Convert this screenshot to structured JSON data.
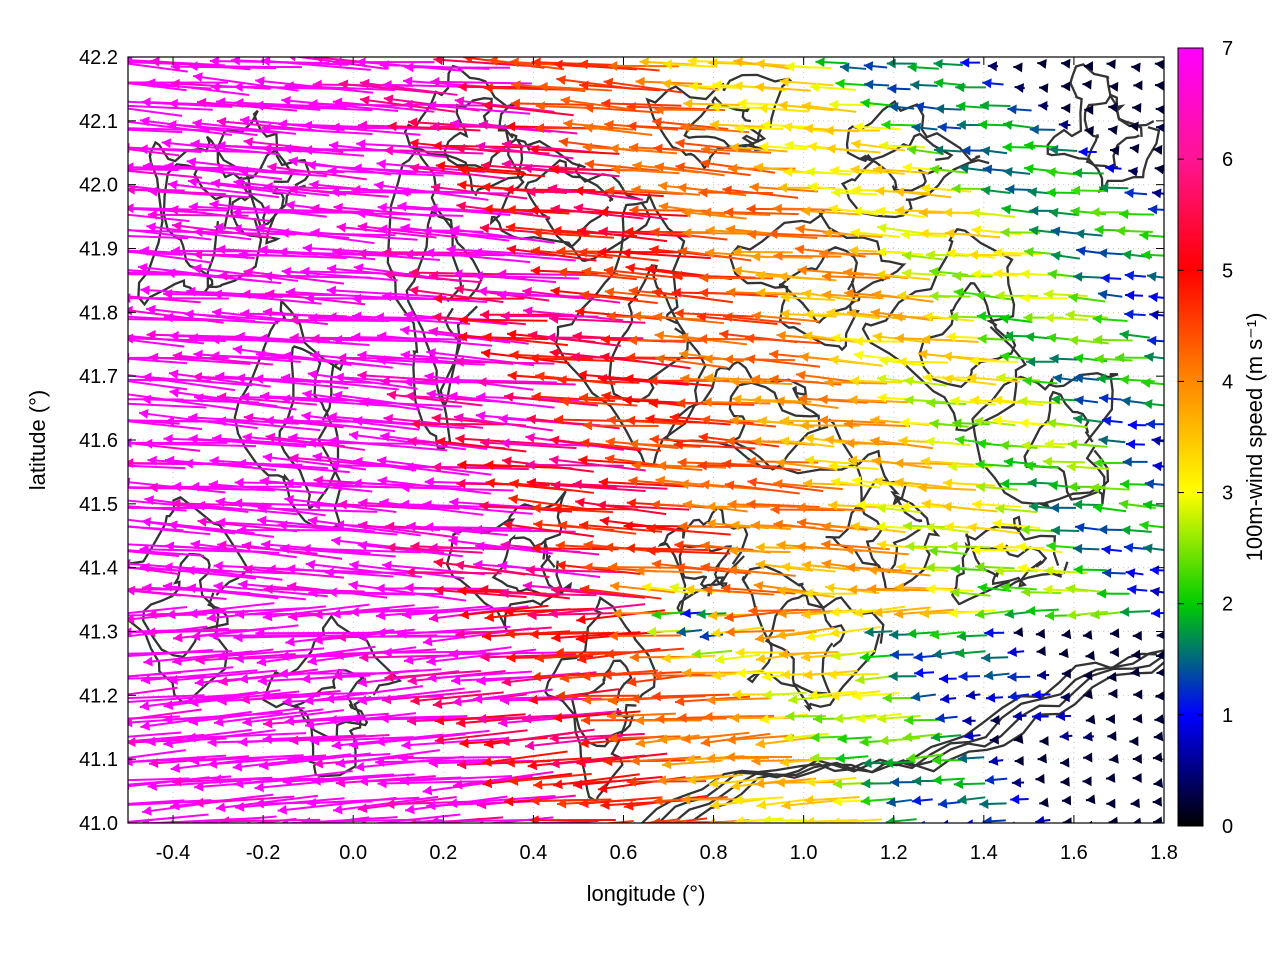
{
  "chart_data": {
    "type": "quiver",
    "xlabel": "longitude (°)",
    "ylabel": "latitude (°)",
    "xlim": [
      -0.5,
      1.8
    ],
    "ylim": [
      41.0,
      42.2
    ],
    "xticks": [
      "-0.4",
      "-0.2",
      "0.0",
      "0.2",
      "0.4",
      "0.6",
      "0.8",
      "1.0",
      "1.2",
      "1.4",
      "1.6",
      "1.8"
    ],
    "yticks": [
      "41.0",
      "41.1",
      "41.2",
      "41.3",
      "41.4",
      "41.5",
      "41.6",
      "41.7",
      "41.8",
      "41.9",
      "42.0",
      "42.1",
      "42.2"
    ],
    "colorbar": {
      "label": "100m-wind speed (m s⁻¹)",
      "range": [
        0,
        7
      ],
      "ticks": [
        "0",
        "1",
        "2",
        "3",
        "4",
        "5",
        "6",
        "7"
      ],
      "colors": [
        "#000000",
        "#0000ff",
        "#00cc00",
        "#ffff00",
        "#ff8800",
        "#ff0000",
        "#ff00ff"
      ]
    },
    "grid": "dotted",
    "legend": "none",
    "wind_direction": "mostly easterly (arrows pointing west)",
    "speed_regions": [
      {
        "region": "west and center, lat 41.3–42.0",
        "speed_ms": 7
      },
      {
        "region": "central band, lon 0.4–1.0",
        "speed_ms": 5
      },
      {
        "region": "east, lon 1.0–1.8, lat 41.0–41.3",
        "speed_ms": 2.5
      },
      {
        "region": "northeast, lon 1.4–1.8, lat 41.8–42.2",
        "speed_ms": 1
      }
    ],
    "contours": "terrain elevation isolines (dark grey)"
  }
}
